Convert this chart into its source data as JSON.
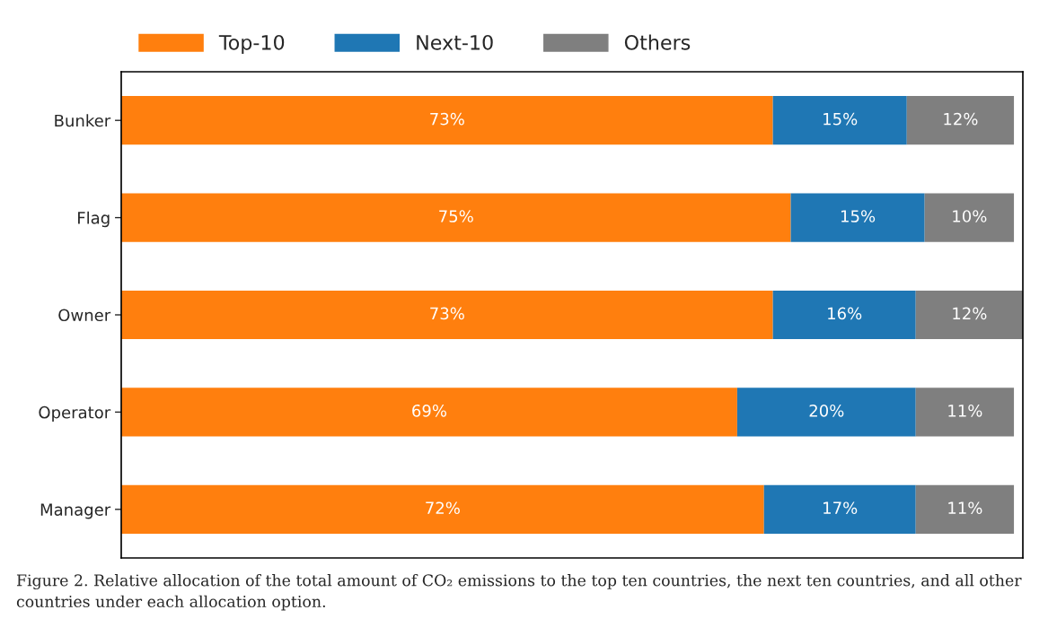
{
  "chart_data": {
    "type": "bar",
    "orientation": "horizontal",
    "stacked": true,
    "categories": [
      "Bunker",
      "Flag",
      "Owner",
      "Operator",
      "Manager"
    ],
    "series": [
      {
        "name": "Top-10",
        "color": "#ff7f0e",
        "values": [
          73,
          75,
          73,
          69,
          72
        ],
        "value_labels": [
          "73%",
          "75%",
          "73%",
          "69%",
          "72%"
        ]
      },
      {
        "name": "Next-10",
        "color": "#1f77b4",
        "values": [
          15,
          15,
          16,
          20,
          17
        ],
        "value_labels": [
          "15%",
          "15%",
          "16%",
          "20%",
          "17%"
        ]
      },
      {
        "name": "Others",
        "color": "#7f7f7f",
        "values": [
          12,
          10,
          12,
          11,
          11
        ],
        "value_labels": [
          "12%",
          "10%",
          "12%",
          "11%",
          "11%"
        ]
      }
    ],
    "legend": "top",
    "tick_labels": "y",
    "grid": false,
    "annotations": [
      "Figure 2. Relative allocation of the total amount of CO₂ emissions to the top ten countries, the next ten countries, and all other countries under each allocation option."
    ]
  }
}
